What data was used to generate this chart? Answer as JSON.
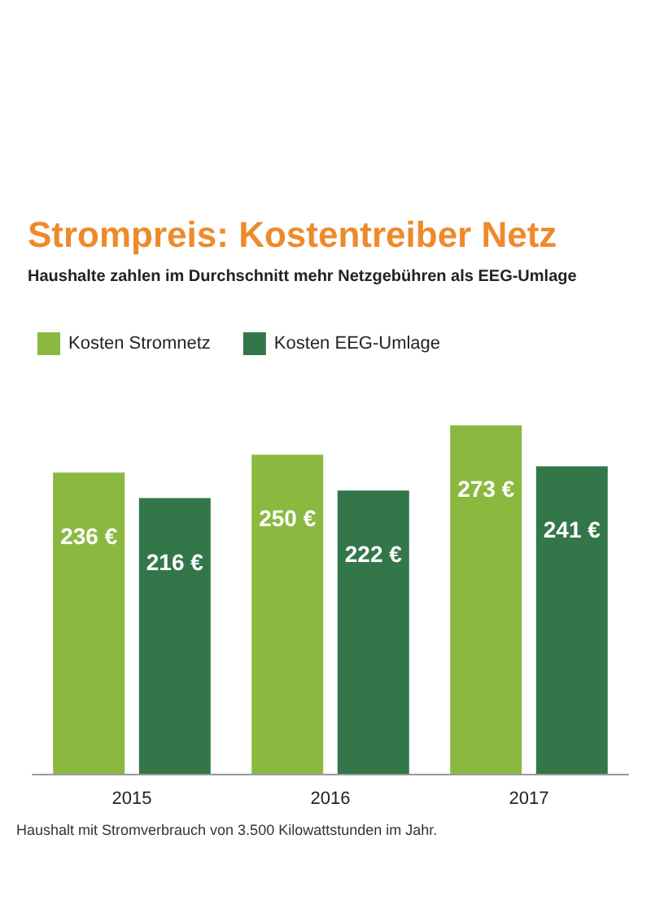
{
  "chart_data": {
    "type": "bar",
    "title": "Strompreis: Kostentreiber Netz",
    "subtitle": "Haushalte zahlen im Durchschnitt mehr Netzgebühren als EEG-Umlage",
    "categories": [
      "2015",
      "2016",
      "2017"
    ],
    "series": [
      {
        "name": "Kosten Stromnetz",
        "color": "#8bb940",
        "values": [
          236,
          250,
          273
        ],
        "value_labels": [
          "236 €",
          "250 €",
          "273 €"
        ]
      },
      {
        "name": "Kosten EEG-Umlage",
        "color": "#33764a",
        "values": [
          216,
          222,
          241
        ],
        "value_labels": [
          "216 €",
          "222 €",
          "241 €"
        ]
      }
    ],
    "legend": "top left",
    "annotations": [
      "Haushalt mit Stromverbrauch von 3.500 Kilowattstunden im Jahr."
    ]
  }
}
